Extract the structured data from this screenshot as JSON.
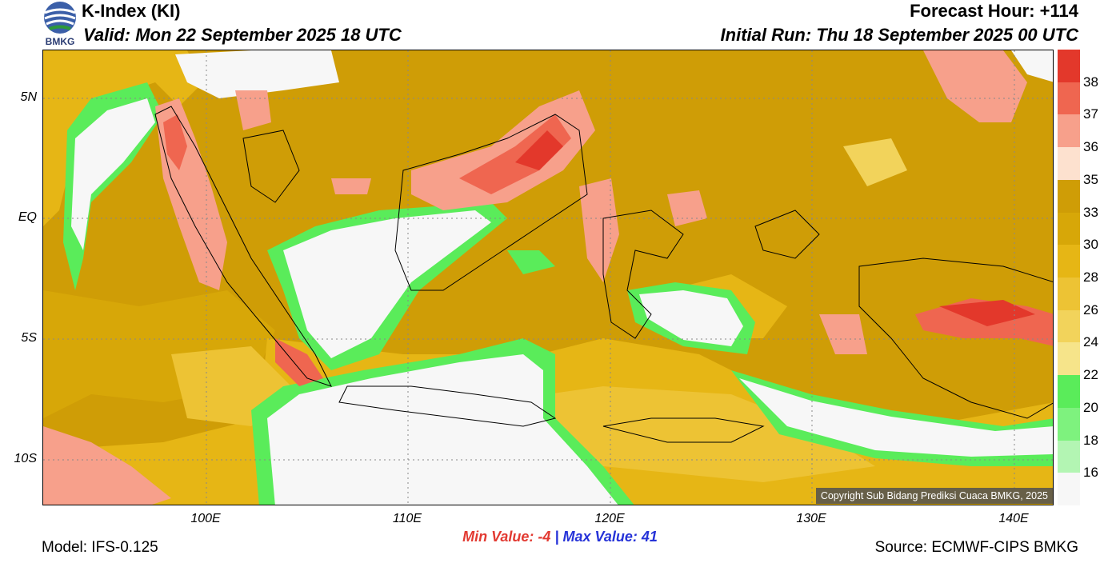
{
  "header": {
    "title": "K-Index (KI)",
    "valid": "Valid: Mon 22 September 2025 18 UTC",
    "forecast_hour": "Forecast Hour: +114",
    "initial_run": "Initial Run: Thu 18 September 2025 00 UTC"
  },
  "logo": {
    "text": "BMKG",
    "icon": "bmkg-logo-icon"
  },
  "map": {
    "lat_labels": [
      "5N",
      "EQ",
      "5S",
      "10S"
    ],
    "lon_labels": [
      "100E",
      "110E",
      "120E",
      "130E",
      "140E"
    ],
    "copyright": "Copyright Sub Bidang Prediksi Cuaca BMKG, 2025"
  },
  "colorbar": {
    "labels": [
      "38",
      "37",
      "36",
      "35",
      "33",
      "30",
      "28",
      "26",
      "24",
      "22",
      "20",
      "18",
      "16"
    ],
    "colors": [
      "#e3382b",
      "#ef6650",
      "#f7a08b",
      "#fde1cf",
      "#cf9d06",
      "#d7a708",
      "#e6b615",
      "#edc334",
      "#f2d35b",
      "#f6e48a",
      "#5aec5a",
      "#7ef27e",
      "#b3f5b3",
      "#f7f7f7"
    ]
  },
  "footer": {
    "min_label": "Min Value:  -4",
    "separator": "|",
    "max_label": "Max Value:  41",
    "model": "Model: IFS-0.125",
    "source": "Source: ECMWF-CIPS BMKG"
  }
}
